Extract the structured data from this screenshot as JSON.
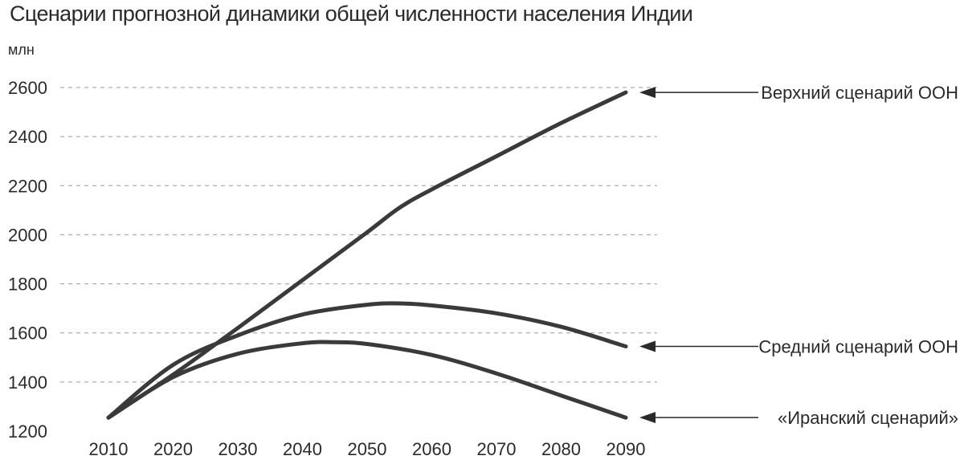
{
  "chart_data": {
    "type": "line",
    "title": "Сценарии прогнозной динамики общей численности населения Индии",
    "ylabel": "млн",
    "xlabel": "",
    "x": [
      2010,
      2020,
      2030,
      2040,
      2050,
      2060,
      2070,
      2080,
      2090
    ],
    "x_tick_labels": [
      "2010",
      "2020",
      "2030",
      "2040",
      "2050",
      "2060",
      "2070",
      "2080",
      "2090"
    ],
    "y_ticks": [
      1200,
      1400,
      1600,
      1800,
      2000,
      2200,
      2400,
      2600
    ],
    "y_tick_labels": [
      "1200",
      "1400",
      "1600",
      "1800",
      "2000",
      "2200",
      "2400",
      "2600"
    ],
    "xlim": [
      2010,
      2090
    ],
    "ylim": [
      1200,
      2600
    ],
    "grid": true,
    "series": [
      {
        "name": "Верхний сценарий ООН",
        "x": [
          2010,
          2020,
          2030,
          2040,
          2050,
          2055,
          2060,
          2070,
          2080,
          2090
        ],
        "values": [
          1255,
          1430,
          1620,
          1815,
          2010,
          2110,
          2185,
          2320,
          2455,
          2580
        ]
      },
      {
        "name": "Средний сценарий ООН",
        "x": [
          2010,
          2020,
          2030,
          2040,
          2050,
          2055,
          2060,
          2070,
          2080,
          2090
        ],
        "values": [
          1255,
          1470,
          1590,
          1675,
          1715,
          1720,
          1712,
          1680,
          1625,
          1545
        ]
      },
      {
        "name": "«Иранский сценарий»",
        "x": [
          2010,
          2020,
          2030,
          2040,
          2045,
          2050,
          2060,
          2070,
          2080,
          2090
        ],
        "values": [
          1255,
          1420,
          1515,
          1558,
          1562,
          1555,
          1510,
          1435,
          1345,
          1255
        ]
      }
    ]
  }
}
